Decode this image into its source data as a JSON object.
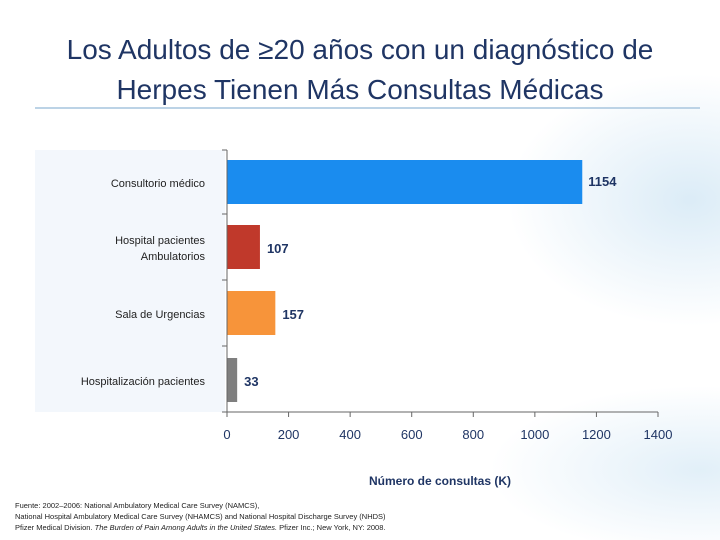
{
  "title_line1": "Los Adultos de ≥20 años con un diagnóstico de",
  "title_line2": "Herpes Tienen Más Consultas Médicas",
  "chart_data": {
    "type": "bar",
    "orientation": "horizontal",
    "categories": [
      "Consultorio médico",
      "Hospital pacientes Ambulatorios",
      "Sala de Urgencias",
      "Hospitalización pacientes"
    ],
    "category_lines": [
      [
        "Consultorio médico"
      ],
      [
        "Hospital pacientes",
        "Ambulatorios"
      ],
      [
        "Sala de Urgencias"
      ],
      [
        "Hospitalización pacientes"
      ]
    ],
    "values": [
      1154,
      107,
      157,
      33
    ],
    "value_labels": [
      "1154",
      "107",
      "157",
      "33"
    ],
    "colors": [
      "#1a8cef",
      "#c0392b",
      "#f7943a",
      "#7f7f7f"
    ],
    "xlabel": "Número de consultas (K)",
    "xlim": [
      0,
      1400
    ],
    "xticks": [
      0,
      200,
      400,
      600,
      800,
      1000,
      1200,
      1400
    ],
    "tick_color": "#1f3564"
  },
  "footnote": {
    "line1": "Fuente:  2002–2006: National Ambulatory Medical Care Survey (NAMCS),",
    "line2": "National Hospital Ambulatory Medical Care Survey (NHAMCS) and National Hospital Discharge Survey (NHDS)",
    "line3_a": "Pfizer  Medical Division. ",
    "line3_b": "The Burden of Pain Among Adults in the United States.",
    "line3_c": "  Pfizer Inc.; New York, NY: 2008."
  }
}
